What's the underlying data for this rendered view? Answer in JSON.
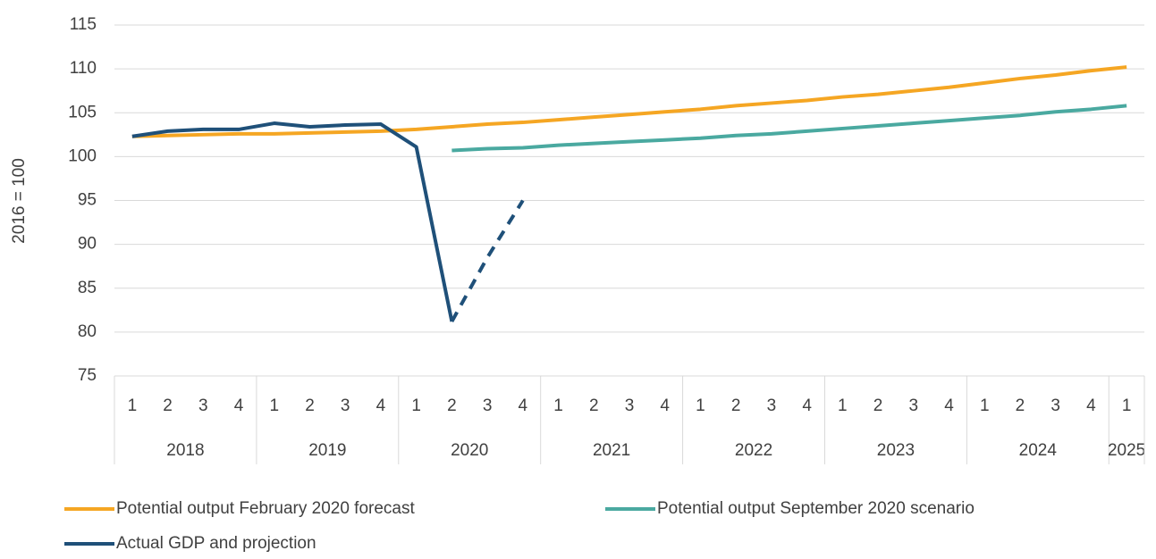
{
  "chart_data": {
    "type": "line",
    "y_label": "2016 = 100",
    "categories": [
      "1",
      "2",
      "3",
      "4",
      "1",
      "2",
      "3",
      "4",
      "1",
      "2",
      "3",
      "4",
      "1",
      "2",
      "3",
      "4",
      "1",
      "2",
      "3",
      "4",
      "1",
      "2",
      "3",
      "4",
      "1",
      "2",
      "3",
      "4",
      "1"
    ],
    "groups": [
      {
        "name": "2018",
        "size": 4
      },
      {
        "name": "2019",
        "size": 4
      },
      {
        "name": "2020",
        "size": 4
      },
      {
        "name": "2021",
        "size": 4
      },
      {
        "name": "2022",
        "size": 4
      },
      {
        "name": "2023",
        "size": 4
      },
      {
        "name": "2024",
        "size": 4
      },
      {
        "name": "2025",
        "size": 1
      }
    ],
    "ylim": [
      75,
      115
    ],
    "yticks": [
      75,
      80,
      85,
      90,
      95,
      100,
      105,
      110,
      115
    ],
    "grid": true,
    "series": [
      {
        "name": "Potential output February 2020 forecast",
        "color": "#f5a623",
        "values": [
          102.3,
          102.4,
          102.5,
          102.6,
          102.6,
          102.7,
          102.8,
          102.9,
          103.1,
          103.4,
          103.7,
          103.9,
          104.2,
          104.5,
          104.8,
          105.1,
          105.4,
          105.8,
          106.1,
          106.4,
          106.8,
          107.1,
          107.5,
          107.9,
          108.4,
          108.9,
          109.3,
          109.8,
          110.2
        ]
      },
      {
        "name": "Potential output September 2020 scenario",
        "color": "#4aa9a0",
        "values": [
          null,
          null,
          null,
          null,
          null,
          null,
          null,
          null,
          null,
          100.7,
          100.9,
          101.0,
          101.3,
          101.5,
          101.7,
          101.9,
          102.1,
          102.4,
          102.6,
          102.9,
          103.2,
          103.5,
          103.8,
          104.1,
          104.4,
          104.7,
          105.1,
          105.4,
          105.8
        ]
      },
      {
        "name": "Actual GDP and projection",
        "color": "#1f5079",
        "values": [
          102.3,
          102.9,
          103.1,
          103.1,
          103.8,
          103.4,
          103.6,
          103.7,
          101.1,
          81.2,
          null,
          null,
          null,
          null,
          null,
          null,
          null,
          null,
          null,
          null,
          null,
          null,
          null,
          null,
          null,
          null,
          null,
          null,
          null
        ]
      },
      {
        "color": "#1f5079",
        "dashed": true,
        "values": [
          null,
          null,
          null,
          null,
          null,
          null,
          null,
          null,
          null,
          81.2,
          88.5,
          95.0,
          null,
          null,
          null,
          null,
          null,
          null,
          null,
          null,
          null,
          null,
          null,
          null,
          null,
          null,
          null,
          null,
          null
        ]
      }
    ]
  }
}
